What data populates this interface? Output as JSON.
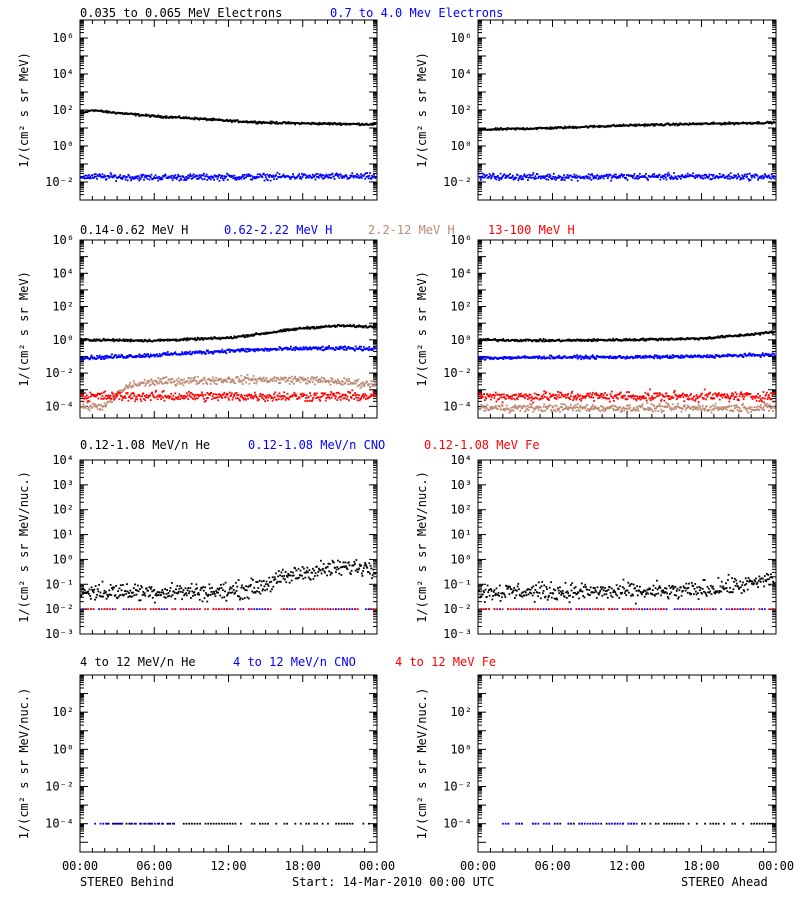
{
  "footer": {
    "left": "STEREO Behind",
    "center": "Start: 14-Mar-2010 00:00 UTC",
    "right": "STEREO Ahead"
  },
  "x_tick_labels": [
    "00:00",
    "06:00",
    "12:00",
    "18:00",
    "00:00"
  ],
  "colors": {
    "black": "#000000",
    "blue": "#0000ff",
    "tan": "#bc8a74",
    "red": "#ff0000"
  },
  "chart_data": [
    {
      "type": "scatter",
      "scale": "log",
      "ylim": [
        0.001,
        10000000
      ],
      "ylabel": "1/(cm² s sr MeV)",
      "y_ticks": [
        0.01,
        1,
        100,
        10000,
        1000000
      ],
      "y_tick_labels": [
        "10⁻²",
        "10⁰",
        "10²",
        "10⁴",
        "10⁶"
      ],
      "legend": [
        {
          "text": "0.035 to 0.065 MeV Electrons",
          "color": "black"
        },
        {
          "text": "0.7 to 4.0 Mev Electrons",
          "color": "blue"
        }
      ],
      "panels": [
        {
          "series": [
            {
              "color": "black",
              "x": [
                0,
                1,
                2,
                4,
                6,
                9,
                12,
                15,
                18,
                21,
                24
              ],
              "y": [
                60,
                100,
                80,
                60,
                45,
                35,
                25,
                20,
                18,
                17,
                16
              ],
              "noise": 0.05
            },
            {
              "color": "blue",
              "x": [
                0,
                6,
                12,
                18,
                24
              ],
              "y": [
                0.02,
                0.018,
                0.019,
                0.02,
                0.02
              ],
              "noise": 0.15
            }
          ]
        },
        {
          "series": [
            {
              "color": "black",
              "x": [
                0,
                6,
                12,
                18,
                24
              ],
              "y": [
                8,
                10,
                14,
                17,
                20
              ],
              "noise": 0.05
            },
            {
              "color": "blue",
              "x": [
                0,
                6,
                12,
                18,
                24
              ],
              "y": [
                0.02,
                0.019,
                0.02,
                0.02,
                0.02
              ],
              "noise": 0.15
            }
          ]
        }
      ]
    },
    {
      "type": "scatter",
      "scale": "log",
      "ylim": [
        2e-05,
        1000000
      ],
      "ylabel": "1/(cm² s sr MeV)",
      "y_ticks": [
        0.0001,
        0.01,
        1,
        100,
        10000,
        1000000
      ],
      "y_tick_labels": [
        "10⁻⁴",
        "10⁻²",
        "10⁰",
        "10²",
        "10⁴",
        "10⁶"
      ],
      "legend": [
        {
          "text": "0.14-0.62 MeV H",
          "color": "black"
        },
        {
          "text": "0.62-2.22 MeV H",
          "color": "blue"
        },
        {
          "text": "2.2-12 MeV H",
          "color": "tan"
        },
        {
          "text": "13-100 MeV H",
          "color": "red"
        }
      ],
      "panels": [
        {
          "series": [
            {
              "color": "black",
              "x": [
                0,
                6,
                12,
                15,
                18,
                21,
                24
              ],
              "y": [
                1.0,
                0.9,
                1.3,
                2.5,
                5,
                7,
                6
              ],
              "noise": 0.06
            },
            {
              "color": "blue",
              "x": [
                0,
                6,
                12,
                18,
                24
              ],
              "y": [
                0.08,
                0.12,
                0.22,
                0.3,
                0.3
              ],
              "noise": 0.1
            },
            {
              "color": "tan",
              "x": [
                0,
                2,
                3,
                4,
                6,
                12,
                18,
                21,
                24
              ],
              "y": [
                0.0001,
                0.0001,
                0.0005,
                0.0018,
                0.003,
                0.004,
                0.004,
                0.003,
                0.002
              ],
              "noise": 0.2
            },
            {
              "color": "red",
              "x": [
                0,
                6,
                12,
                18,
                24
              ],
              "y": [
                0.0004,
                0.0004,
                0.0004,
                0.0004,
                0.0004
              ],
              "noise": 0.25
            }
          ]
        },
        {
          "series": [
            {
              "color": "black",
              "x": [
                0,
                6,
                12,
                18,
                21,
                24
              ],
              "y": [
                1.0,
                0.9,
                1.0,
                1.2,
                1.8,
                3.0
              ],
              "noise": 0.06
            },
            {
              "color": "blue",
              "x": [
                0,
                6,
                12,
                18,
                24
              ],
              "y": [
                0.08,
                0.09,
                0.09,
                0.1,
                0.13
              ],
              "noise": 0.08
            },
            {
              "color": "tan",
              "x": [
                0,
                6,
                12,
                18,
                24
              ],
              "y": [
                8e-05,
                8e-05,
                8e-05,
                8e-05,
                8e-05
              ],
              "noise": 0.2
            },
            {
              "color": "red",
              "x": [
                0,
                6,
                12,
                18,
                24
              ],
              "y": [
                0.0004,
                0.0004,
                0.0004,
                0.0004,
                0.0004
              ],
              "noise": 0.25
            }
          ]
        }
      ]
    },
    {
      "type": "scatter",
      "scale": "log",
      "ylim": [
        0.001,
        10000
      ],
      "ylabel": "1/(cm² s sr MeV/nuc.)",
      "y_ticks": [
        0.001,
        0.01,
        0.1,
        1,
        10,
        100,
        1000,
        10000
      ],
      "y_tick_labels": [
        "10⁻³",
        "10⁻²",
        "10⁻¹",
        "10⁰",
        "10¹",
        "10²",
        "10³",
        "10⁴"
      ],
      "legend": [
        {
          "text": "0.12-1.08 MeV/n He",
          "color": "black"
        },
        {
          "text": "0.12-1.08 MeV/n CNO",
          "color": "blue"
        },
        {
          "text": "0.12-1.08 MeV Fe",
          "color": "red"
        }
      ],
      "panels": [
        {
          "series": [
            {
              "color": "black",
              "x": [
                0,
                6,
                12,
                14,
                15,
                16,
                18,
                20,
                22,
                24
              ],
              "y": [
                0.05,
                0.05,
                0.05,
                0.07,
                0.1,
                0.15,
                0.3,
                0.4,
                0.5,
                0.5
              ],
              "noise": 0.3
            },
            {
              "color": "blue",
              "x": [
                0,
                24
              ],
              "y": [
                0.01,
                0.01
              ],
              "noise": 0
            },
            {
              "color": "red",
              "x": [
                0,
                24
              ],
              "y": [
                0.01,
                0.01
              ],
              "noise": 0
            }
          ]
        },
        {
          "series": [
            {
              "color": "black",
              "x": [
                0,
                6,
                12,
                16,
                18,
                20,
                22,
                24
              ],
              "y": [
                0.05,
                0.05,
                0.05,
                0.05,
                0.06,
                0.08,
                0.1,
                0.2
              ],
              "noise": 0.3
            },
            {
              "color": "blue",
              "x": [
                0,
                24
              ],
              "y": [
                0.01,
                0.01
              ],
              "noise": 0
            },
            {
              "color": "red",
              "x": [
                0,
                24
              ],
              "y": [
                0.01,
                0.01
              ],
              "noise": 0
            }
          ]
        }
      ]
    },
    {
      "type": "scatter",
      "scale": "log",
      "ylim": [
        3e-06,
        10000
      ],
      "ylabel": "1/(cm² s sr MeV/nuc.)",
      "y_ticks": [
        0.0001,
        0.01,
        1,
        100
      ],
      "y_tick_labels": [
        "10⁻⁴",
        "10⁻²",
        "10⁰",
        "10²"
      ],
      "legend": [
        {
          "text": "4 to 12 MeV/n He",
          "color": "black"
        },
        {
          "text": "4 to 12 MeV/n CNO",
          "color": "blue"
        },
        {
          "text": "4 to 12 MeV Fe",
          "color": "red"
        }
      ],
      "panels": [
        {
          "series": [
            {
              "color": "black",
              "x": [
                2,
                24
              ],
              "y": [
                0.0001,
                0.0001
              ],
              "noise": 0
            },
            {
              "color": "blue",
              "x": [
                1,
                8
              ],
              "y": [
                0.0001,
                0.0001
              ],
              "noise": 0
            }
          ]
        },
        {
          "series": [
            {
              "color": "black",
              "x": [
                2,
                24
              ],
              "y": [
                0.0001,
                0.0001
              ],
              "noise": 0
            },
            {
              "color": "blue",
              "x": [
                2,
                14
              ],
              "y": [
                0.0001,
                0.0001
              ],
              "noise": 0
            }
          ]
        }
      ]
    }
  ]
}
